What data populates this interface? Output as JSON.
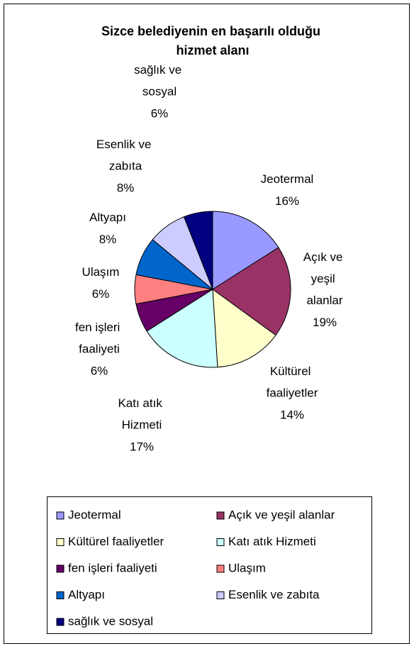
{
  "chart_data": {
    "type": "pie",
    "title": "Sizce belediyenin en başarılı olduğu hizmet alanı",
    "categories": [
      "Jeotermal",
      "Açık ve yeşil alanlar",
      "Kültürel faaliyetler",
      "Katı atık Hizmeti",
      "fen işleri faaliyeti",
      "Ulaşım",
      "Altyapı",
      "Esenlik ve zabıta",
      "sağlık ve sosyal"
    ],
    "values": [
      16,
      19,
      14,
      17,
      6,
      6,
      8,
      8,
      6
    ],
    "value_labels": [
      "16%",
      "19%",
      "14%",
      "17%",
      "6%",
      "6%",
      "8%",
      "8%",
      "6%"
    ],
    "colors": [
      "#9999ff",
      "#993366",
      "#ffffcc",
      "#ccffff",
      "#660066",
      "#ff8080",
      "#0066cc",
      "#ccccff",
      "#000080"
    ],
    "legend": "bottom"
  }
}
